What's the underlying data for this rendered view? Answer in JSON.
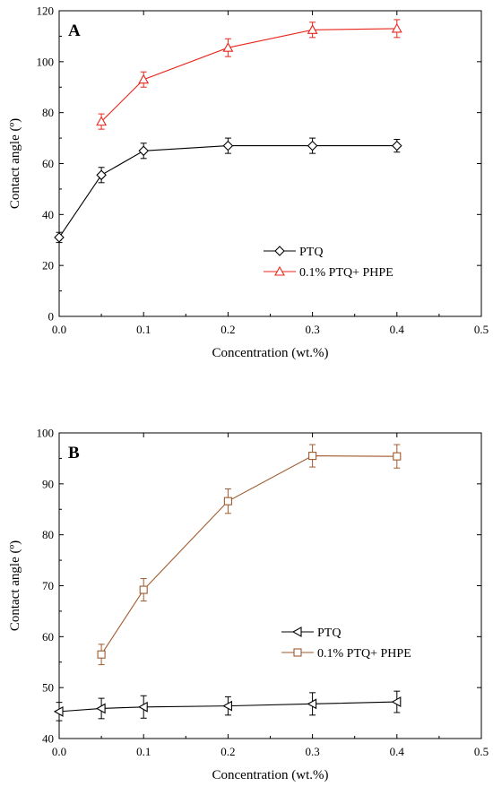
{
  "chart_data": [
    {
      "type": "line",
      "panel_label": "A",
      "xlabel": "Concentration (wt.%)",
      "ylabel": "Contact angle (º)",
      "xlim": [
        0.0,
        0.5
      ],
      "ylim": [
        0,
        120
      ],
      "xticks": [
        "0.0",
        "0.1",
        "0.2",
        "0.3",
        "0.4",
        "0.5"
      ],
      "yticks": [
        "0",
        "20",
        "40",
        "60",
        "80",
        "100",
        "120"
      ],
      "grid": false,
      "legend_position": "bottom-right",
      "series": [
        {
          "name": "PTQ",
          "marker": "diamond",
          "color": "#000000",
          "x": [
            0.0,
            0.05,
            0.1,
            0.2,
            0.3,
            0.4
          ],
          "y": [
            31,
            55.5,
            65,
            67,
            67,
            67
          ],
          "err": [
            2,
            3,
            3,
            3,
            3,
            2.5
          ]
        },
        {
          "name": "0.1% PTQ+ PHPE",
          "marker": "triangle-up",
          "color": "#e8261d",
          "x": [
            0.05,
            0.1,
            0.2,
            0.3,
            0.4
          ],
          "y": [
            76.5,
            93,
            105.5,
            112.5,
            113
          ],
          "err": [
            3,
            3,
            3.5,
            3,
            3.5
          ]
        }
      ]
    },
    {
      "type": "line",
      "panel_label": "B",
      "xlabel": "Concentration (wt.%)",
      "ylabel": "Contact angle (º)",
      "xlim": [
        0.0,
        0.5
      ],
      "ylim": [
        40,
        100
      ],
      "xticks": [
        "0.0",
        "0.1",
        "0.2",
        "0.3",
        "0.4",
        "0.5"
      ],
      "yticks": [
        "40",
        "50",
        "60",
        "70",
        "80",
        "90",
        "100"
      ],
      "grid": false,
      "legend_position": "bottom-right",
      "series": [
        {
          "name": "PTQ",
          "marker": "triangle-left",
          "color": "#000000",
          "x": [
            0.0,
            0.05,
            0.1,
            0.2,
            0.3,
            0.4
          ],
          "y": [
            45.3,
            45.9,
            46.2,
            46.4,
            46.8,
            47.2
          ],
          "err": [
            1.8,
            2.0,
            2.2,
            1.8,
            2.2,
            2.1
          ]
        },
        {
          "name": "0.1% PTQ+ PHPE",
          "marker": "square",
          "color": "#a05a2c",
          "x": [
            0.05,
            0.1,
            0.2,
            0.3,
            0.4
          ],
          "y": [
            56.5,
            69.2,
            86.6,
            95.5,
            95.4
          ],
          "err": [
            2.0,
            2.2,
            2.4,
            2.2,
            2.3
          ]
        }
      ]
    }
  ]
}
